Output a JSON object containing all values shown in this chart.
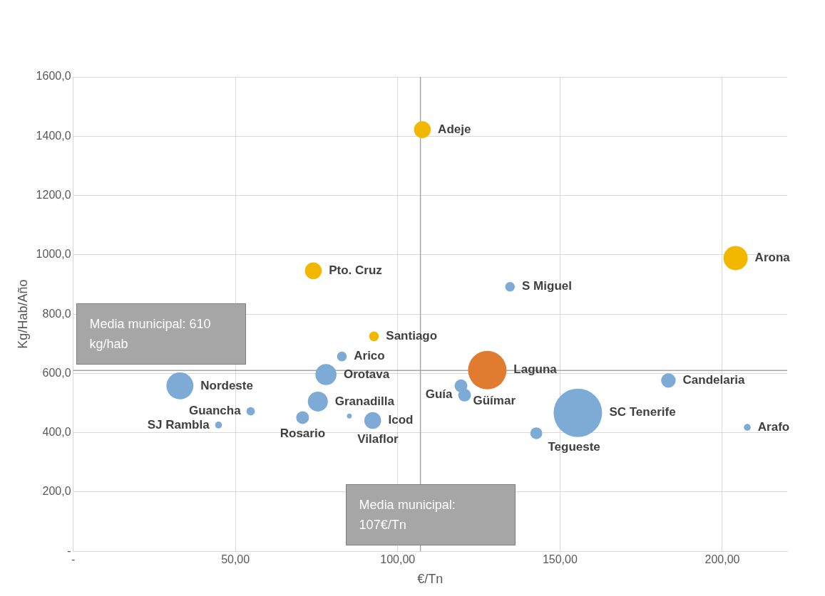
{
  "chart_data": {
    "type": "bubble",
    "xlabel": "€/Tn",
    "ylabel": "Kg/Hab/Año",
    "xlim": [
      0,
      220
    ],
    "xticks": [
      {
        "value": 0,
        "label": "-"
      },
      {
        "value": 50,
        "label": "50,00"
      },
      {
        "value": 100,
        "label": "100,00"
      },
      {
        "value": 150,
        "label": "150,00"
      },
      {
        "value": 200,
        "label": "200,00"
      }
    ],
    "ylim": [
      0,
      1600
    ],
    "yticks": [
      {
        "value": 0,
        "label": "-"
      },
      {
        "value": 200,
        "label": "200,0"
      },
      {
        "value": 400,
        "label": "400,0"
      },
      {
        "value": 600,
        "label": "600,0"
      },
      {
        "value": 800,
        "label": "800,0"
      },
      {
        "value": 1000,
        "label": "1000,0"
      },
      {
        "value": 1200,
        "label": "1200,0"
      },
      {
        "value": 1400,
        "label": "1400,0"
      },
      {
        "value": 1600,
        "label": "1600,0"
      }
    ],
    "grid": true,
    "legend": false,
    "series": [
      {
        "color": "#f2b800",
        "x": [
          107.6,
          204.1,
          74.0,
          92.7
        ],
        "values": [
          1422,
          989,
          946,
          725
        ],
        "sizes": [
          0.12,
          0.25,
          0.12,
          0.04
        ]
      },
      {
        "color": "#e07b30",
        "x": [
          127.6
        ],
        "values": [
          611
        ],
        "sizes": [
          0.63
        ]
      },
      {
        "color": "#7eaad6",
        "x": [
          134.6,
          82.8,
          77.9,
          32.9,
          183.4,
          119.5,
          120.6,
          75.4,
          155.5,
          54.7,
          92.3,
          85.1,
          70.7,
          44.8,
          142.7,
          207.7
        ],
        "values": [
          892,
          657,
          596,
          558,
          576,
          558,
          527,
          505,
          467,
          472,
          441,
          456,
          451,
          426,
          398,
          418
        ],
        "sizes": [
          0.04,
          0.04,
          0.19,
          0.31,
          0.09,
          0.07,
          0.07,
          0.17,
          1,
          0.03,
          0.12,
          0.01,
          0.07,
          0.02,
          0.06,
          0.02
        ]
      }
    ],
    "annotations": [
      {
        "text": "Adeje",
        "x": 107.6,
        "y": 1422
      },
      {
        "text": "Arona",
        "x": 204.1,
        "y": 989
      },
      {
        "text": "Pto. Cruz",
        "x": 74.0,
        "y": 946
      },
      {
        "text": "Santiago",
        "x": 92.7,
        "y": 725
      },
      {
        "text": "Laguna",
        "x": 127.6,
        "y": 611
      },
      {
        "text": "S Miguel",
        "x": 134.6,
        "y": 892
      },
      {
        "text": "Arico",
        "x": 82.8,
        "y": 657
      },
      {
        "text": "Orotava",
        "x": 77.9,
        "y": 596
      },
      {
        "text": "Nordeste",
        "x": 32.9,
        "y": 558
      },
      {
        "text": "Candelaria",
        "x": 183.4,
        "y": 576
      },
      {
        "text": "Güímar",
        "x": 119.5,
        "y": 558
      },
      {
        "text": "Guía",
        "x": 120.6,
        "y": 527
      },
      {
        "text": "Granadilla",
        "x": 75.4,
        "y": 505
      },
      {
        "text": "SC Tenerife",
        "x": 155.5,
        "y": 467
      },
      {
        "text": "Guancha",
        "x": 54.7,
        "y": 472
      },
      {
        "text": "Icod",
        "x": 92.3,
        "y": 441
      },
      {
        "text": "Vilaflor",
        "x": 85.1,
        "y": 456
      },
      {
        "text": "Rosario",
        "x": 70.7,
        "y": 451
      },
      {
        "text": "SJ Rambla",
        "x": 44.8,
        "y": 426
      },
      {
        "text": "Tegueste",
        "x": 142.7,
        "y": 398
      },
      {
        "text": "Arafo",
        "x": 207.7,
        "y": 418
      }
    ],
    "ref_lines": [
      {
        "axis": "y",
        "value": 610,
        "label": "Media municipal: 610 kg/hab",
        "color": "#a6a6a6"
      },
      {
        "axis": "x",
        "value": 107,
        "label": "Media municipal: 107€/Tn",
        "color": "#a6a6a6"
      }
    ]
  }
}
